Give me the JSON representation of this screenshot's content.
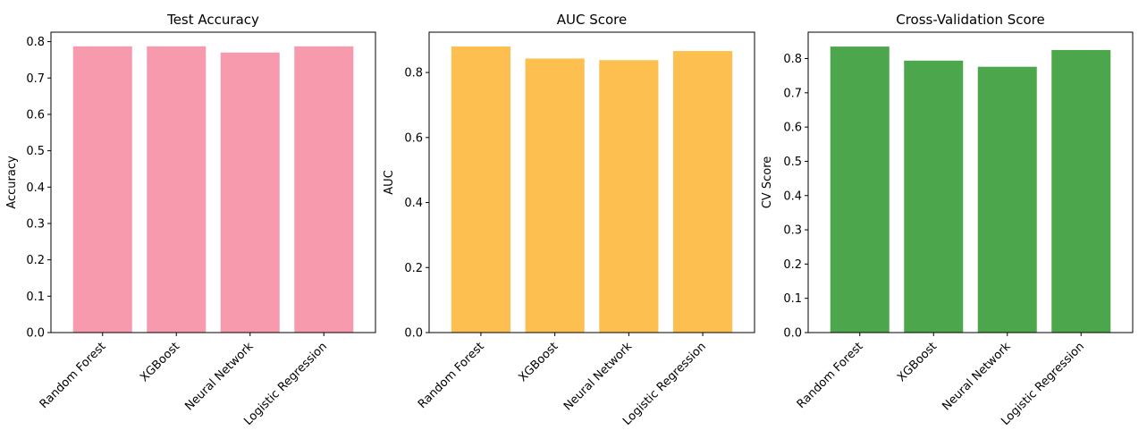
{
  "chart_data": [
    {
      "type": "bar",
      "title": "Test Accuracy",
      "xlabel": "",
      "ylabel": "Accuracy",
      "categories": [
        "Random Forest",
        "XGBoost",
        "Neural Network",
        "Logistic Regression"
      ],
      "values": [
        0.787,
        0.787,
        0.77,
        0.787
      ],
      "ylim": [
        0,
        0.826
      ],
      "yticks": [
        0.0,
        0.1,
        0.2,
        0.3,
        0.4,
        0.5,
        0.6,
        0.7,
        0.8
      ],
      "ytick_labels": [
        "0.0",
        "0.1",
        "0.2",
        "0.3",
        "0.4",
        "0.5",
        "0.6",
        "0.7",
        "0.8"
      ],
      "color": "#f89aae",
      "grid": false
    },
    {
      "type": "bar",
      "title": "AUC Score",
      "xlabel": "",
      "ylabel": "AUC",
      "categories": [
        "Random Forest",
        "XGBoost",
        "Neural Network",
        "Logistic Regression"
      ],
      "values": [
        0.88,
        0.843,
        0.838,
        0.866
      ],
      "ylim": [
        0,
        0.924
      ],
      "yticks": [
        0.0,
        0.2,
        0.4,
        0.6,
        0.8
      ],
      "ytick_labels": [
        "0.0",
        "0.2",
        "0.4",
        "0.6",
        "0.8"
      ],
      "color": "#fdbf4f",
      "grid": false
    },
    {
      "type": "bar",
      "title": "Cross-Validation Score",
      "xlabel": "",
      "ylabel": "CV Score",
      "categories": [
        "Random Forest",
        "XGBoost",
        "Neural Network",
        "Logistic Regression"
      ],
      "values": [
        0.835,
        0.794,
        0.776,
        0.825
      ],
      "ylim": [
        0,
        0.877
      ],
      "yticks": [
        0.0,
        0.1,
        0.2,
        0.3,
        0.4,
        0.5,
        0.6,
        0.7,
        0.8
      ],
      "ytick_labels": [
        "0.0",
        "0.1",
        "0.2",
        "0.3",
        "0.4",
        "0.5",
        "0.6",
        "0.7",
        "0.8"
      ],
      "color": "#4ca64c",
      "grid": false
    }
  ]
}
